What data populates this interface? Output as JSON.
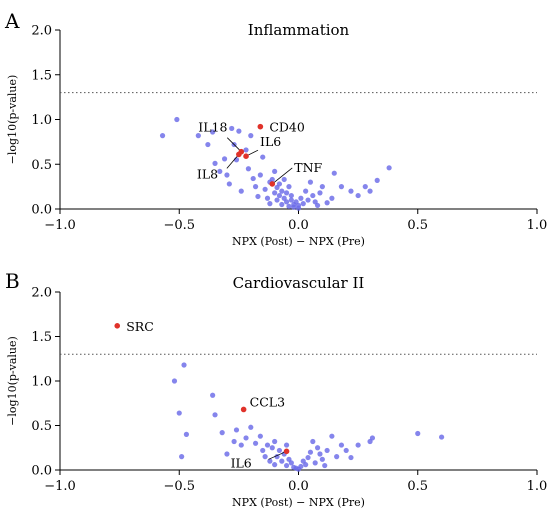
{
  "chart_data": [
    {
      "panel": "A",
      "type": "scatter",
      "title": "Inflammation",
      "xlabel": "NPX (Post) − NPX (Pre)",
      "ylabel": "−log10(p-value)",
      "xlim": [
        -1.0,
        1.0
      ],
      "ylim": [
        0.0,
        2.0
      ],
      "x_ticks": [
        "−1.0",
        "−0.5",
        "0.0",
        "0.5",
        "1.0"
      ],
      "y_ticks": [
        "0.0",
        "0.5",
        "1.0",
        "1.5",
        "2.0"
      ],
      "threshold_y": 1.3,
      "grid": false,
      "colors": {
        "points": "#6a6ae8",
        "highlight": "#e0322a",
        "threshold": "#555555"
      },
      "points": [
        [
          -0.57,
          0.82
        ],
        [
          -0.51,
          1.0
        ],
        [
          -0.42,
          0.82
        ],
        [
          -0.38,
          0.72
        ],
        [
          -0.36,
          0.86
        ],
        [
          -0.35,
          0.51
        ],
        [
          -0.33,
          0.42
        ],
        [
          -0.31,
          0.56
        ],
        [
          -0.3,
          0.38
        ],
        [
          -0.29,
          0.28
        ],
        [
          -0.28,
          0.9
        ],
        [
          -0.27,
          0.72
        ],
        [
          -0.26,
          0.55
        ],
        [
          -0.25,
          0.87
        ],
        [
          -0.24,
          0.2
        ],
        [
          -0.22,
          0.66
        ],
        [
          -0.21,
          0.45
        ],
        [
          -0.2,
          0.82
        ],
        [
          -0.19,
          0.34
        ],
        [
          -0.18,
          0.25
        ],
        [
          -0.17,
          0.14
        ],
        [
          -0.16,
          0.38
        ],
        [
          -0.15,
          0.58
        ],
        [
          -0.14,
          0.22
        ],
        [
          -0.13,
          0.12
        ],
        [
          -0.12,
          0.3
        ],
        [
          -0.12,
          0.06
        ],
        [
          -0.11,
          0.33
        ],
        [
          -0.1,
          0.18
        ],
        [
          -0.1,
          0.42
        ],
        [
          -0.09,
          0.24
        ],
        [
          -0.09,
          0.1
        ],
        [
          -0.08,
          0.15
        ],
        [
          -0.08,
          0.28
        ],
        [
          -0.07,
          0.05
        ],
        [
          -0.07,
          0.2
        ],
        [
          -0.06,
          0.12
        ],
        [
          -0.06,
          0.33
        ],
        [
          -0.05,
          0.08
        ],
        [
          -0.05,
          0.18
        ],
        [
          -0.04,
          0.03
        ],
        [
          -0.04,
          0.25
        ],
        [
          -0.03,
          0.1
        ],
        [
          -0.03,
          0.15
        ],
        [
          -0.02,
          0.05
        ],
        [
          -0.02,
          0.02
        ],
        [
          -0.01,
          0.08
        ],
        [
          0.0,
          0.01
        ],
        [
          0.0,
          0.04
        ],
        [
          0.01,
          0.12
        ],
        [
          0.02,
          0.06
        ],
        [
          0.03,
          0.2
        ],
        [
          0.04,
          0.1
        ],
        [
          0.05,
          0.3
        ],
        [
          0.06,
          0.15
        ],
        [
          0.07,
          0.08
        ],
        [
          0.08,
          0.04
        ],
        [
          0.09,
          0.18
        ],
        [
          0.1,
          0.25
        ],
        [
          0.12,
          0.07
        ],
        [
          0.14,
          0.12
        ],
        [
          0.15,
          0.4
        ],
        [
          0.18,
          0.25
        ],
        [
          0.22,
          0.2
        ],
        [
          0.25,
          0.15
        ],
        [
          0.28,
          0.25
        ],
        [
          0.3,
          0.2
        ],
        [
          0.33,
          0.32
        ],
        [
          0.38,
          0.46
        ]
      ],
      "highlights": [
        {
          "label": "CD40",
          "x": -0.16,
          "y": 0.92
        },
        {
          "label": "IL18",
          "x": -0.24,
          "y": 0.64
        },
        {
          "label": "IL6",
          "x": -0.22,
          "y": 0.59
        },
        {
          "label": "IL8",
          "x": -0.25,
          "y": 0.61
        },
        {
          "label": "TNF",
          "x": -0.11,
          "y": 0.28
        }
      ]
    },
    {
      "panel": "B",
      "type": "scatter",
      "title": "Cardiovascular II",
      "xlabel": "NPX (Post) − NPX (Pre)",
      "ylabel": "−log10(p-value)",
      "xlim": [
        -1.0,
        1.0
      ],
      "ylim": [
        0.0,
        2.0
      ],
      "x_ticks": [
        "−1.0",
        "−0.5",
        "0.0",
        "0.5",
        "1.0"
      ],
      "y_ticks": [
        "0.0",
        "0.5",
        "1.0",
        "1.5",
        "2.0"
      ],
      "threshold_y": 1.3,
      "grid": false,
      "colors": {
        "points": "#6a6ae8",
        "highlight": "#e0322a",
        "threshold": "#555555"
      },
      "points": [
        [
          -0.52,
          1.0
        ],
        [
          -0.5,
          0.64
        ],
        [
          -0.48,
          1.18
        ],
        [
          -0.49,
          0.15
        ],
        [
          -0.47,
          0.4
        ],
        [
          -0.36,
          0.84
        ],
        [
          -0.35,
          0.62
        ],
        [
          -0.32,
          0.42
        ],
        [
          -0.3,
          0.18
        ],
        [
          -0.27,
          0.32
        ],
        [
          -0.26,
          0.45
        ],
        [
          -0.24,
          0.28
        ],
        [
          -0.22,
          0.36
        ],
        [
          -0.2,
          0.48
        ],
        [
          -0.18,
          0.3
        ],
        [
          -0.16,
          0.38
        ],
        [
          -0.15,
          0.22
        ],
        [
          -0.14,
          0.15
        ],
        [
          -0.13,
          0.28
        ],
        [
          -0.12,
          0.1
        ],
        [
          -0.11,
          0.25
        ],
        [
          -0.1,
          0.32
        ],
        [
          -0.1,
          0.06
        ],
        [
          -0.09,
          0.15
        ],
        [
          -0.08,
          0.22
        ],
        [
          -0.07,
          0.1
        ],
        [
          -0.06,
          0.18
        ],
        [
          -0.05,
          0.28
        ],
        [
          -0.05,
          0.05
        ],
        [
          -0.04,
          0.12
        ],
        [
          -0.03,
          0.08
        ],
        [
          -0.02,
          0.03
        ],
        [
          -0.01,
          0.02
        ],
        [
          0.0,
          0.01
        ],
        [
          0.01,
          0.04
        ],
        [
          0.02,
          0.1
        ],
        [
          0.03,
          0.06
        ],
        [
          0.04,
          0.14
        ],
        [
          0.05,
          0.2
        ],
        [
          0.06,
          0.32
        ],
        [
          0.07,
          0.08
        ],
        [
          0.08,
          0.25
        ],
        [
          0.09,
          0.18
        ],
        [
          0.1,
          0.12
        ],
        [
          0.11,
          0.05
        ],
        [
          0.12,
          0.22
        ],
        [
          0.14,
          0.38
        ],
        [
          0.16,
          0.15
        ],
        [
          0.18,
          0.28
        ],
        [
          0.2,
          0.22
        ],
        [
          0.22,
          0.14
        ],
        [
          0.25,
          0.28
        ],
        [
          0.3,
          0.32
        ],
        [
          0.31,
          0.36
        ],
        [
          0.5,
          0.41
        ],
        [
          0.6,
          0.37
        ]
      ],
      "highlights": [
        {
          "label": "SRC",
          "x": -0.76,
          "y": 1.62
        },
        {
          "label": "CCL3",
          "x": -0.23,
          "y": 0.68
        },
        {
          "label": "IL6",
          "x": -0.05,
          "y": 0.21
        }
      ]
    }
  ]
}
